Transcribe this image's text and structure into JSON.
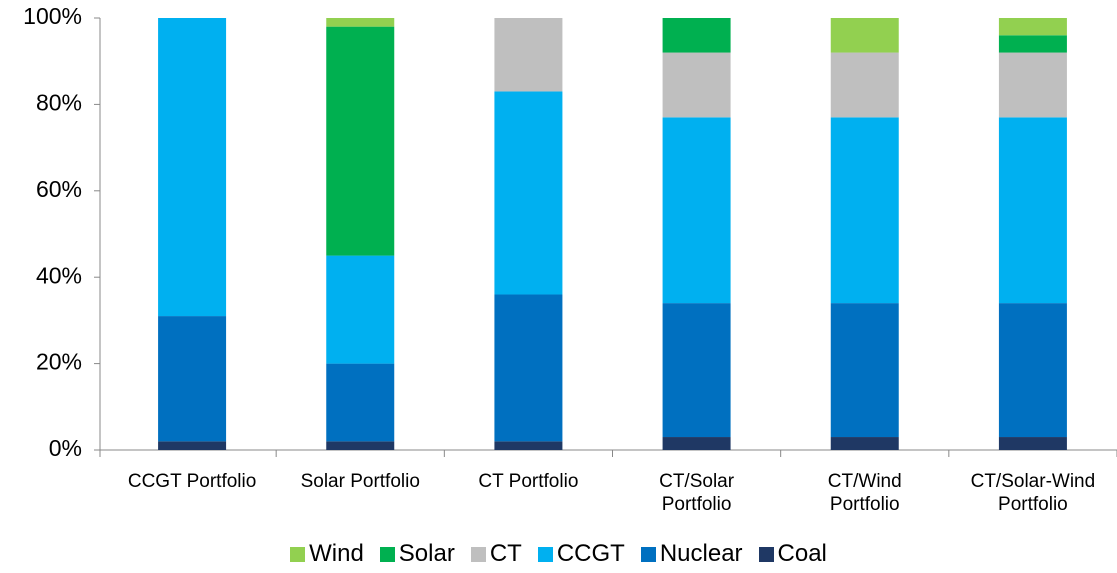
{
  "chart_data": {
    "type": "stacked_bar",
    "categories": [
      "CCGT Portfolio",
      "Solar Portfolio",
      "CT Portfolio",
      "CT/Solar\nPortfolio",
      "CT/Wind\nPortfolio",
      "CT/Solar-Wind\nPortfolio"
    ],
    "series": [
      {
        "name": "Wind",
        "color": "#92d050",
        "values": [
          0,
          2,
          0,
          0,
          8,
          4
        ]
      },
      {
        "name": "Solar",
        "color": "#00b050",
        "values": [
          0,
          53,
          0,
          8,
          0,
          4
        ]
      },
      {
        "name": "CT",
        "color": "#bfbfbf",
        "values": [
          0,
          0,
          17,
          15,
          15,
          15
        ]
      },
      {
        "name": "CCGT",
        "color": "#00b0f0",
        "values": [
          69,
          25,
          47,
          43,
          43,
          43
        ]
      },
      {
        "name": "Nuclear",
        "color": "#0070c0",
        "values": [
          29,
          18,
          34,
          31,
          31,
          31
        ]
      },
      {
        "name": "Coal",
        "color": "#1f3864",
        "values": [
          2,
          2,
          2,
          3,
          3,
          3
        ]
      }
    ],
    "stack_order": "bottom-up from last series",
    "ylim": [
      0,
      100
    ],
    "yticks": [
      {
        "value": 0,
        "label": "0%"
      },
      {
        "value": 20,
        "label": "20%"
      },
      {
        "value": 40,
        "label": "40%"
      },
      {
        "value": 60,
        "label": "60%"
      },
      {
        "value": 80,
        "label": "80%"
      },
      {
        "value": 100,
        "label": "100%"
      }
    ],
    "legend": "bottom",
    "grid": false
  }
}
